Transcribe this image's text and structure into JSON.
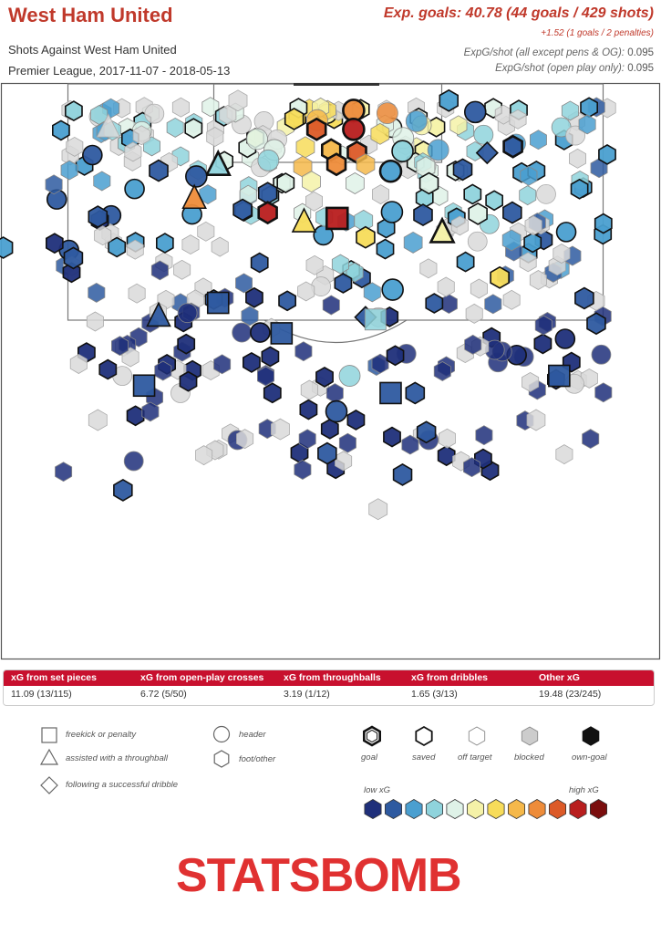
{
  "header": {
    "team": "West Ham United",
    "subtitle": "Shots Against West Ham United",
    "competition": "Premier League, 2017-11-07 - 2018-05-13",
    "xg_summary": "Exp. goals: 40.78 (44 goals / 429 shots)",
    "xg_extra": "+1.52 (1 goals / 2 penalties)",
    "stats": [
      {
        "label": "ExpG/shot (all except pens & OG):",
        "value": "0.095"
      },
      {
        "label": "ExpG/shot (open play only):",
        "value": "0.095"
      }
    ]
  },
  "breakdown": {
    "headers": [
      "xG from set pieces",
      "xG from open-play crosses",
      "xG from throughballs",
      "xG from dribbles",
      "Other xG"
    ],
    "values": [
      "11.09 (13/115)",
      "6.72 (5/50)",
      "3.19 (1/12)",
      "1.65 (3/13)",
      "19.48 (23/245)"
    ]
  },
  "legend": {
    "shape_items": [
      {
        "shape": "square",
        "label": "freekick or penalty"
      },
      {
        "shape": "triangle",
        "label": "assisted with a throughball"
      },
      {
        "shape": "diamond",
        "label": "following a successful dribble"
      },
      {
        "shape": "circle",
        "label": "header"
      },
      {
        "shape": "hexagon",
        "label": "foot/other"
      }
    ],
    "outcome_items": [
      {
        "key": "goal",
        "label": "goal"
      },
      {
        "key": "saved",
        "label": "saved"
      },
      {
        "key": "off_target",
        "label": "off target"
      },
      {
        "key": "blocked",
        "label": "blocked"
      },
      {
        "key": "own_goal",
        "label": "own-goal"
      }
    ],
    "low_label": "low xG",
    "high_label": "high xG",
    "scale_colors": [
      "#1f2f7a",
      "#2e5aa0",
      "#4a9fd0",
      "#8fd3dc",
      "#dff2e8",
      "#f5f2a8",
      "#f7dc5a",
      "#f5b84a",
      "#ee8c3a",
      "#dc5a28",
      "#b81e1e",
      "#7a0e0e"
    ]
  },
  "brand": "STATSBOMB",
  "chart_data": {
    "type": "scatter",
    "title": "Shots Against West Ham United",
    "color_scale": [
      "#1f2f7a",
      "#2e5aa0",
      "#4a9fd0",
      "#8fd3dc",
      "#dff2e8",
      "#f5f2a8",
      "#f7dc5a",
      "#f5b84a",
      "#ee8c3a",
      "#dc5a28",
      "#b81e1e",
      "#7a0e0e"
    ],
    "points": [
      {
        "x": 36.0,
        "y": 2.9,
        "xg": 0.35,
        "shape": "hex",
        "outcome": "blocked"
      },
      {
        "x": 44.5,
        "y": 6.1,
        "xg": 0.52,
        "shape": "hex",
        "outcome": "saved"
      },
      {
        "x": 48.0,
        "y": 6.3,
        "xg": 0.62,
        "shape": "circle",
        "outcome": "off"
      },
      {
        "x": 53.5,
        "y": 4.6,
        "xg": 0.7,
        "shape": "circle",
        "outcome": "goal"
      },
      {
        "x": 58.6,
        "y": 5.1,
        "xg": 0.75,
        "shape": "circle",
        "outcome": "off"
      },
      {
        "x": 63.0,
        "y": 6.5,
        "xg": 0.22,
        "shape": "circle",
        "outcome": "off"
      },
      {
        "x": 67.9,
        "y": 2.9,
        "xg": 0.17,
        "shape": "hex",
        "outcome": "saved"
      },
      {
        "x": 71.9,
        "y": 4.9,
        "xg": 0.12,
        "shape": "circle",
        "outcome": "saved"
      },
      {
        "x": 47.9,
        "y": 7.9,
        "xg": 0.85,
        "shape": "hex",
        "outcome": "goal"
      },
      {
        "x": 53.5,
        "y": 7.9,
        "xg": 0.95,
        "shape": "circle",
        "outcome": "goal"
      },
      {
        "x": 57.5,
        "y": 8.7,
        "xg": 0.55,
        "shape": "hex",
        "outcome": "off"
      },
      {
        "x": 61.0,
        "y": 9.4,
        "xg": 0.4,
        "shape": "circle",
        "outcome": "off"
      },
      {
        "x": 38.9,
        "y": 9.6,
        "xg": 0.32,
        "shape": "circle",
        "outcome": "off"
      },
      {
        "x": 41.5,
        "y": 11.5,
        "xg": 0.4,
        "shape": "circle",
        "outcome": "off"
      },
      {
        "x": 46.2,
        "y": 11.0,
        "xg": 0.55,
        "shape": "hex",
        "outcome": "off"
      },
      {
        "x": 50.1,
        "y": 11.5,
        "xg": 0.68,
        "shape": "hex",
        "outcome": "goal"
      },
      {
        "x": 54.0,
        "y": 11.9,
        "xg": 0.82,
        "shape": "hex",
        "outcome": "goal"
      },
      {
        "x": 60.9,
        "y": 11.7,
        "xg": 0.25,
        "shape": "circle",
        "outcome": "saved"
      },
      {
        "x": 66.3,
        "y": 11.5,
        "xg": 0.15,
        "shape": "circle",
        "outcome": "off"
      },
      {
        "x": 73.7,
        "y": 12.0,
        "xg": 0.1,
        "shape": "diamond",
        "outcome": "saved"
      },
      {
        "x": 77.6,
        "y": 10.9,
        "xg": 0.1,
        "shape": "hex",
        "outcome": "goal"
      },
      {
        "x": 40.6,
        "y": 13.3,
        "xg": 0.25,
        "shape": "circle",
        "outcome": "off"
      },
      {
        "x": 45.8,
        "y": 14.4,
        "xg": 0.62,
        "shape": "hex",
        "outcome": "off"
      },
      {
        "x": 50.9,
        "y": 14.0,
        "xg": 0.7,
        "shape": "hex",
        "outcome": "goal"
      },
      {
        "x": 55.3,
        "y": 14.0,
        "xg": 0.6,
        "shape": "hex",
        "outcome": "off"
      },
      {
        "x": 59.1,
        "y": 15.2,
        "xg": 0.18,
        "shape": "circle",
        "outcome": "goal"
      },
      {
        "x": 64.4,
        "y": 14.5,
        "xg": 0.35,
        "shape": "hex",
        "outcome": "off"
      },
      {
        "x": 70.0,
        "y": 14.9,
        "xg": 0.1,
        "shape": "hex",
        "outcome": "saved"
      },
      {
        "x": 33.0,
        "y": 14.0,
        "xg": 0.3,
        "shape": "triangle",
        "outcome": "goal"
      },
      {
        "x": 29.7,
        "y": 16.1,
        "xg": 0.05,
        "shape": "circle",
        "outcome": "saved"
      },
      {
        "x": 24.0,
        "y": 15.1,
        "xg": 0.05,
        "shape": "hex",
        "outcome": "saved"
      },
      {
        "x": 47.1,
        "y": 17.0,
        "xg": 0.45,
        "shape": "hex",
        "outcome": "off"
      },
      {
        "x": 53.7,
        "y": 17.3,
        "xg": 0.4,
        "shape": "hex",
        "outcome": "off"
      },
      {
        "x": 64.9,
        "y": 17.3,
        "xg": 0.35,
        "shape": "hex",
        "outcome": "saved"
      },
      {
        "x": 29.4,
        "y": 19.8,
        "xg": 0.75,
        "shape": "triangle",
        "outcome": "saved"
      },
      {
        "x": 40.5,
        "y": 19.0,
        "xg": 0.05,
        "shape": "hex",
        "outcome": "saved"
      },
      {
        "x": 36.7,
        "y": 21.9,
        "xg": 0.1,
        "shape": "hex",
        "outcome": "saved"
      },
      {
        "x": 40.5,
        "y": 22.4,
        "xg": 0.9,
        "shape": "hex",
        "outcome": "goal"
      },
      {
        "x": 46.0,
        "y": 23.9,
        "xg": 0.55,
        "shape": "triangle",
        "outcome": "saved"
      },
      {
        "x": 51.0,
        "y": 23.4,
        "xg": 0.95,
        "shape": "square",
        "outcome": "goal"
      },
      {
        "x": 55.0,
        "y": 23.8,
        "xg": 0.3,
        "shape": "hex",
        "outcome": "off"
      },
      {
        "x": 59.3,
        "y": 22.3,
        "xg": 0.15,
        "shape": "circle",
        "outcome": "saved"
      },
      {
        "x": 64.0,
        "y": 22.8,
        "xg": 0.05,
        "shape": "hex",
        "outcome": "saved"
      },
      {
        "x": 72.3,
        "y": 22.6,
        "xg": 0.35,
        "shape": "hex",
        "outcome": "saved"
      },
      {
        "x": 77.5,
        "y": 22.4,
        "xg": 0.05,
        "shape": "hex",
        "outcome": "saved"
      },
      {
        "x": 66.9,
        "y": 25.7,
        "xg": 0.45,
        "shape": "triangle",
        "outcome": "goal"
      },
      {
        "x": 55.3,
        "y": 26.7,
        "xg": 0.55,
        "shape": "hex",
        "outcome": "saved"
      },
      {
        "x": 14.8,
        "y": 23.1,
        "xg": 0.05,
        "shape": "hex",
        "outcome": "saved"
      },
      {
        "x": 77.4,
        "y": 27.2,
        "xg": 0.2,
        "shape": "hex",
        "outcome": "off"
      },
      {
        "x": 62.5,
        "y": 27.6,
        "xg": 0.2,
        "shape": "hex",
        "outcome": "off"
      },
      {
        "x": 11.1,
        "y": 30.3,
        "xg": 0.1,
        "shape": "hex",
        "outcome": "saved"
      },
      {
        "x": 75.6,
        "y": 33.7,
        "xg": 0.55,
        "shape": "hex",
        "outcome": "saved"
      },
      {
        "x": 59.4,
        "y": 35.8,
        "xg": 0.15,
        "shape": "circle",
        "outcome": "saved"
      },
      {
        "x": 88.4,
        "y": 37.3,
        "xg": 0.05,
        "shape": "hex",
        "outcome": "saved"
      },
      {
        "x": 90.2,
        "y": 41.7,
        "xg": 0.05,
        "shape": "hex",
        "outcome": "saved"
      },
      {
        "x": 33.0,
        "y": 38.1,
        "xg": 0.1,
        "shape": "square",
        "outcome": "saved"
      },
      {
        "x": 55.3,
        "y": 40.6,
        "xg": 0.05,
        "shape": "diamond",
        "outcome": "saved"
      },
      {
        "x": 56.8,
        "y": 41.0,
        "xg": 0.25,
        "shape": "square",
        "outcome": "off"
      },
      {
        "x": 42.6,
        "y": 43.4,
        "xg": 0.1,
        "shape": "square",
        "outcome": "saved"
      },
      {
        "x": 21.8,
        "y": 52.5,
        "xg": 0.1,
        "shape": "square",
        "outcome": "saved"
      },
      {
        "x": 59.1,
        "y": 53.8,
        "xg": 0.1,
        "shape": "square",
        "outcome": "saved"
      },
      {
        "x": 84.6,
        "y": 50.8,
        "xg": 0.05,
        "shape": "square",
        "outcome": "saved"
      },
      {
        "x": 24.0,
        "y": 40.3,
        "xg": 0.05,
        "shape": "triangle",
        "outcome": "saved"
      },
      {
        "x": 16.4,
        "y": 7.4,
        "xg": 0.3,
        "shape": "triangle",
        "outcome": "blocked"
      },
      {
        "x": 52.9,
        "y": 50.8,
        "xg": 0.25,
        "shape": "circle",
        "outcome": "off"
      },
      {
        "x": 62.8,
        "y": 53.8,
        "xg": 0.1,
        "shape": "hex",
        "outcome": "saved"
      },
      {
        "x": 50.9,
        "y": 57.0,
        "xg": 0.05,
        "shape": "circle",
        "outcome": "saved"
      },
      {
        "x": 57.2,
        "y": 74.0,
        "xg": 0.05,
        "shape": "hex",
        "outcome": "blocked"
      },
      {
        "x": 18.6,
        "y": 70.7,
        "xg": 0.05,
        "shape": "hex",
        "outcome": "saved"
      },
      {
        "x": 60.9,
        "y": 68.0,
        "xg": 0.05,
        "shape": "hex",
        "outcome": "saved"
      },
      {
        "x": 49.5,
        "y": 64.3,
        "xg": 0.05,
        "shape": "hex",
        "outcome": "saved"
      },
      {
        "x": 42.4,
        "y": 60.1,
        "xg": 0.05,
        "shape": "hex",
        "outcome": "blocked"
      },
      {
        "x": 64.5,
        "y": 60.6,
        "xg": 0.05,
        "shape": "hex",
        "outcome": "saved"
      },
      {
        "x": 14.8,
        "y": 58.5,
        "xg": 0.05,
        "shape": "hex",
        "outcome": "blocked"
      },
      {
        "x": 81.1,
        "y": 58.5,
        "xg": 0.05,
        "shape": "hex",
        "outcome": "blocked"
      },
      {
        "x": 0.5,
        "y": 28.5,
        "xg": 0.15,
        "shape": "hex",
        "outcome": "saved"
      }
    ]
  }
}
